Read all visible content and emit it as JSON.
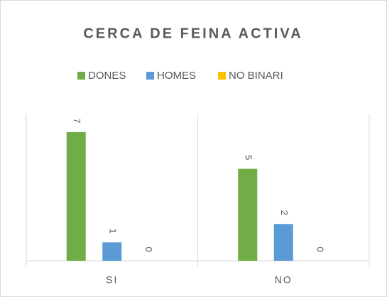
{
  "chart_data": {
    "type": "bar",
    "title": "CERCA DE FEINA ACTIVA",
    "categories": [
      "SI",
      "NO"
    ],
    "series": [
      {
        "name": "DONES",
        "color": "#70ad47",
        "values": [
          7,
          5
        ]
      },
      {
        "name": "HOMES",
        "color": "#5b9bd5",
        "values": [
          1,
          2
        ]
      },
      {
        "name": "NO BINARI",
        "color": "#ffc000",
        "values": [
          0,
          0
        ]
      }
    ],
    "ylim": [
      0,
      8
    ],
    "legend": "top"
  }
}
